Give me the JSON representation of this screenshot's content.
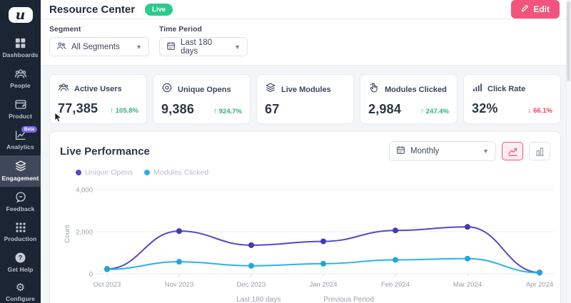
{
  "app": {
    "logo_letter": "u"
  },
  "sidebar": {
    "items": [
      {
        "label": "Dashboards"
      },
      {
        "label": "People"
      },
      {
        "label": "Product"
      },
      {
        "label": "Analytics",
        "badge": "Beta"
      },
      {
        "label": "Engagement",
        "active": true
      },
      {
        "label": "Feedback"
      }
    ],
    "bottom_items": [
      {
        "label": "Production"
      },
      {
        "label": "Get Help"
      },
      {
        "label": "Configure"
      }
    ]
  },
  "header": {
    "title": "Resource Center",
    "status_badge": "Live",
    "edit_label": "Edit"
  },
  "filters": {
    "segment": {
      "label": "Segment",
      "value": "All Segments"
    },
    "time_period": {
      "label": "Time Period",
      "value": "Last 180 days"
    }
  },
  "stats": [
    {
      "label": "Active Users",
      "value": "77,385",
      "arrow": "↑",
      "delta": "105.8%",
      "trend": "up"
    },
    {
      "label": "Unique Opens",
      "value": "9,386",
      "arrow": "↑",
      "delta": "924.7%",
      "trend": "up"
    },
    {
      "label": "Live Modules",
      "value": "67",
      "arrow": "",
      "delta": "",
      "trend": ""
    },
    {
      "label": "Modules Clicked",
      "value": "2,984",
      "arrow": "↑",
      "delta": "247.4%",
      "trend": "up"
    },
    {
      "label": "Click Rate",
      "value": "32%",
      "arrow": "↓",
      "delta": "66.1%",
      "trend": "down"
    }
  ],
  "chart_panel": {
    "title": "Live Performance",
    "period_selector": "Monthly",
    "footer_left": "Last 180 days",
    "footer_right": "Previous Period"
  },
  "chart_data": {
    "type": "line",
    "x": [
      "Oct 2023",
      "Nov 2023",
      "Dec 2023",
      "Jan 2024",
      "Feb 2024",
      "Mar 2024",
      "Apr 2024"
    ],
    "series": [
      {
        "name": "Unique Opens",
        "color": "#5348c8",
        "dot_color": "#4338b8",
        "values": [
          230,
          2030,
          1360,
          1540,
          2060,
          2230,
          60
        ]
      },
      {
        "name": "Modules Clicked",
        "color": "#29b2e9",
        "dot_color": "#1ea6e0",
        "values": [
          210,
          570,
          380,
          480,
          660,
          720,
          50
        ]
      }
    ],
    "title": "Live Performance",
    "xlabel": "",
    "ylabel": "Count",
    "yticks": [
      0,
      2000,
      4000
    ],
    "ylim": [
      0,
      4000
    ],
    "grid": true,
    "legend_position": "top-left"
  },
  "colors": {
    "sidebar_bg": "#1c2534",
    "accent_pink": "#f2547d",
    "live_green": "#2bcb8e",
    "trend_up": "#27b478",
    "trend_down": "#ef3e5e",
    "series_purple": "#5348c8",
    "series_blue": "#29b2e9"
  }
}
